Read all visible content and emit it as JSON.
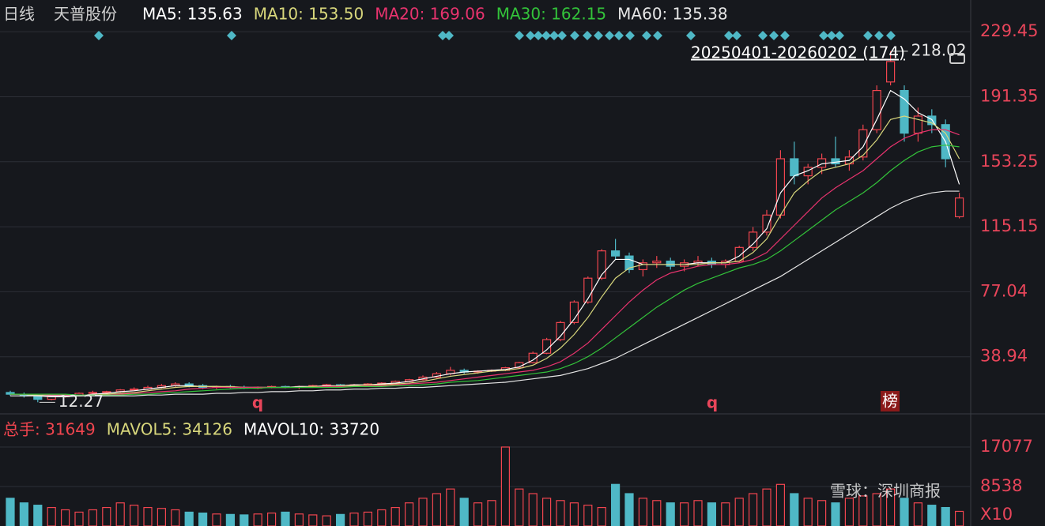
{
  "chart_data": {
    "type": "candlestick",
    "period": "日线",
    "stock": "天普股份",
    "range_label": "20250401-20260202 (174)",
    "high_label": "218.02",
    "low_label": "12.27",
    "markers": [
      "q",
      "q",
      "榜"
    ],
    "watermark": "雪球：深圳商报",
    "ylim": [
      5.48,
      248.04
    ],
    "yticks": [
      38.94,
      77.04,
      115.15,
      153.25,
      191.35,
      229.45
    ],
    "up_color": "#f0454f",
    "down_color": "#4fb8c6",
    "candles": [
      [
        18,
        19,
        16,
        17
      ],
      [
        17,
        18,
        15,
        16
      ],
      [
        16,
        16.5,
        12.27,
        14
      ],
      [
        14,
        16,
        13.5,
        15.5
      ],
      [
        15.5,
        17,
        15,
        16.5
      ],
      [
        16.5,
        18,
        16,
        17.5
      ],
      [
        17.5,
        19,
        17,
        18
      ],
      [
        18,
        19,
        17,
        18.5
      ],
      [
        18.5,
        20,
        18,
        19.5
      ],
      [
        19.5,
        21,
        19,
        20
      ],
      [
        20,
        22,
        19.5,
        21
      ],
      [
        21,
        23,
        20.5,
        22
      ],
      [
        22,
        24,
        21,
        23
      ],
      [
        23,
        24,
        21,
        22
      ],
      [
        22,
        23,
        20,
        21
      ],
      [
        21,
        22,
        20,
        21.5
      ],
      [
        21.5,
        22.5,
        20.5,
        21
      ],
      [
        21,
        22,
        20,
        20.5
      ],
      [
        20.5,
        21.5,
        20,
        21
      ],
      [
        21,
        22,
        20.5,
        21.5
      ],
      [
        21.5,
        22,
        20.5,
        21
      ],
      [
        21,
        22,
        20,
        21.5
      ],
      [
        21.5,
        22.5,
        21,
        22
      ],
      [
        22,
        23,
        21.5,
        22.5
      ],
      [
        22.5,
        23,
        21.5,
        22
      ],
      [
        22,
        23,
        21.5,
        22.5
      ],
      [
        22.5,
        23.5,
        22,
        23
      ],
      [
        23,
        24,
        22.5,
        23.5
      ],
      [
        23.5,
        25,
        23,
        24.5
      ],
      [
        24.5,
        26,
        24,
        25.5
      ],
      [
        25.5,
        28,
        25,
        27
      ],
      [
        27,
        30,
        26.5,
        29
      ],
      [
        29,
        33,
        28,
        31
      ],
      [
        31,
        32,
        29,
        30
      ],
      [
        30,
        31,
        29,
        30.5
      ],
      [
        30.5,
        31.5,
        30,
        31
      ],
      [
        31,
        33,
        30.5,
        32.5
      ],
      [
        32.5,
        36,
        32,
        35.5
      ],
      [
        35.5,
        42,
        35,
        41
      ],
      [
        41,
        50,
        40.5,
        49
      ],
      [
        49,
        60,
        48,
        59
      ],
      [
        59,
        72,
        58,
        71
      ],
      [
        71,
        86,
        70,
        85
      ],
      [
        85,
        102,
        84,
        101
      ],
      [
        101,
        108,
        96,
        98
      ],
      [
        98,
        100,
        88,
        90
      ],
      [
        90,
        96,
        86,
        94
      ],
      [
        94,
        98,
        91,
        95
      ],
      [
        95,
        97,
        90,
        92
      ],
      [
        92,
        96,
        89,
        94
      ],
      [
        94,
        98,
        92,
        95
      ],
      [
        95,
        97,
        91,
        93
      ],
      [
        93,
        96,
        91,
        95
      ],
      [
        95,
        104,
        94,
        103
      ],
      [
        103,
        115,
        101,
        112
      ],
      [
        112,
        125,
        110,
        122
      ],
      [
        122,
        160,
        120,
        155
      ],
      [
        155,
        165,
        140,
        145
      ],
      [
        145,
        152,
        140,
        150
      ],
      [
        150,
        158,
        146,
        155
      ],
      [
        155,
        168,
        150,
        152
      ],
      [
        152,
        160,
        148,
        156
      ],
      [
        156,
        175,
        154,
        172
      ],
      [
        172,
        198,
        170,
        195
      ],
      [
        200,
        218.02,
        198,
        212
      ],
      [
        195,
        198,
        165,
        170
      ],
      [
        170,
        185,
        165,
        180
      ],
      [
        180,
        184,
        170,
        175
      ],
      [
        175,
        178,
        150,
        155
      ],
      [
        121,
        135,
        120,
        132
      ]
    ],
    "series": [
      {
        "name": "MA5",
        "label": "MA5: 135.63",
        "color": "#ffffff",
        "values": [
          17,
          17,
          16,
          15.5,
          15.5,
          16,
          17,
          17.5,
          18.5,
          19,
          20,
          21,
          22,
          22,
          21.5,
          21.5,
          21,
          21,
          21,
          21,
          21,
          21.5,
          21.5,
          22,
          22,
          22.5,
          22.5,
          23,
          23.5,
          24.5,
          26,
          27.5,
          29,
          30,
          30.5,
          31,
          31.5,
          33,
          37,
          43,
          51,
          61,
          73,
          87,
          96,
          96,
          93,
          93,
          93,
          93,
          94,
          94,
          94,
          98,
          105,
          114,
          135,
          145,
          148,
          152,
          153,
          154,
          162,
          178,
          195,
          190,
          182,
          178,
          165,
          140
        ]
      },
      {
        "name": "MA10",
        "label": "MA10: 153.50",
        "color": "#d8d77c",
        "values": [
          17,
          17,
          16.5,
          16,
          16,
          16,
          16.5,
          17,
          17.5,
          18,
          19,
          20,
          21,
          21.5,
          21.5,
          21.5,
          21.5,
          21,
          21,
          21,
          21,
          21,
          21.5,
          21.5,
          22,
          22,
          22.5,
          22.5,
          23,
          23.5,
          24.5,
          26,
          27.5,
          28.5,
          29.5,
          30.5,
          31,
          32,
          34,
          38,
          44,
          52,
          62,
          74,
          85,
          91,
          93,
          93,
          93,
          93,
          93,
          94,
          94,
          95,
          100,
          108,
          122,
          135,
          142,
          148,
          150,
          152,
          157,
          166,
          178,
          180,
          178,
          176,
          170,
          155
        ]
      },
      {
        "name": "MA20",
        "label": "MA20: 169.06",
        "color": "#e8336e",
        "values": [
          17,
          17,
          17,
          16.5,
          16.5,
          16.5,
          16.5,
          16.5,
          17,
          17.5,
          18,
          18.5,
          19,
          20,
          20.5,
          21,
          21,
          21,
          21,
          21,
          21,
          21,
          21,
          21.5,
          21.5,
          21.5,
          22,
          22,
          22.5,
          23,
          23.5,
          24,
          25,
          26,
          27,
          28,
          29,
          30,
          31,
          33,
          36,
          41,
          47,
          55,
          63,
          71,
          78,
          84,
          88,
          90,
          92,
          93,
          93,
          94,
          96,
          100,
          108,
          116,
          124,
          132,
          138,
          143,
          148,
          155,
          162,
          167,
          170,
          172,
          172,
          169
        ]
      },
      {
        "name": "MA30",
        "label": "MA30: 162.15",
        "color": "#33c33a",
        "values": [
          17,
          17,
          17,
          17,
          17,
          16.5,
          16.5,
          16.5,
          16.5,
          17,
          17,
          17.5,
          18,
          18.5,
          19,
          19.5,
          20,
          20.5,
          20.5,
          21,
          21,
          21,
          21,
          21,
          21,
          21.5,
          21.5,
          21.5,
          22,
          22,
          22.5,
          23,
          24,
          24.5,
          25,
          26,
          27,
          28,
          29,
          30,
          32,
          35,
          39,
          44,
          50,
          56,
          62,
          68,
          73,
          78,
          82,
          85,
          88,
          91,
          93,
          96,
          101,
          107,
          113,
          119,
          125,
          130,
          135,
          141,
          148,
          154,
          159,
          162,
          163,
          162
        ]
      },
      {
        "name": "MA60",
        "label": "MA60: 135.38",
        "color": "#e6e6e6",
        "values": [
          16,
          16,
          16,
          16,
          16,
          16,
          16,
          16,
          16,
          16,
          16.5,
          16.5,
          17,
          17,
          17,
          17.5,
          17.5,
          18,
          18,
          18.5,
          18.5,
          19,
          19,
          19.5,
          19.5,
          20,
          20,
          20.5,
          20.5,
          21,
          21,
          21.5,
          22,
          22.5,
          23,
          23.5,
          24,
          25,
          26,
          27,
          28,
          30,
          32,
          35,
          38,
          42,
          46,
          50,
          54,
          58,
          62,
          66,
          70,
          74,
          78,
          82,
          86,
          91,
          96,
          101,
          106,
          111,
          116,
          121,
          126,
          130,
          133,
          135,
          136,
          136
        ]
      }
    ],
    "volume": {
      "legend": [
        {
          "label": "总手: 31649",
          "color": "#f0454f"
        },
        {
          "label": "MAVOL5: 34126",
          "color": "#d8d77c"
        },
        {
          "label": "MAVOL10: 33720",
          "color": "#ffffff"
        }
      ],
      "unit_label": "X10",
      "ylim": [
        0,
        23225
      ],
      "yticks": [
        8538,
        17077
      ],
      "values": [
        6000,
        5000,
        4500,
        4000,
        3500,
        3000,
        3500,
        4000,
        5000,
        4500,
        4000,
        3800,
        3500,
        3000,
        2800,
        2600,
        2500,
        2400,
        2600,
        2800,
        3000,
        2600,
        2400,
        2200,
        2500,
        2800,
        3000,
        3500,
        4000,
        5000,
        6000,
        7000,
        8000,
        6000,
        5000,
        5500,
        17077,
        8000,
        7000,
        6000,
        5500,
        5000,
        4500,
        4000,
        9000,
        7000,
        6000,
        5500,
        5000,
        5000,
        5500,
        5000,
        5000,
        6000,
        7000,
        8000,
        9000,
        7000,
        6000,
        5500,
        5000,
        6000,
        6500,
        7000,
        8000,
        6000,
        5000,
        4500,
        4000,
        3165
      ]
    }
  }
}
